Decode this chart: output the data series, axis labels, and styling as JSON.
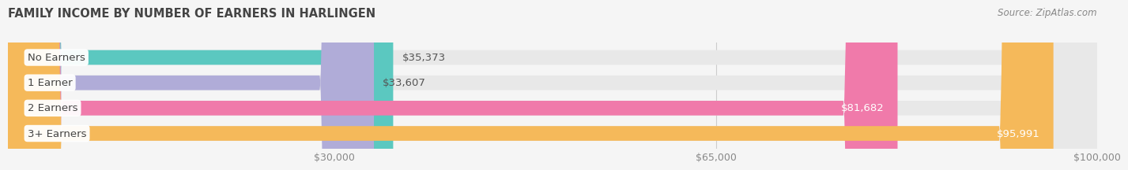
{
  "title": "FAMILY INCOME BY NUMBER OF EARNERS IN HARLINGEN",
  "source": "Source: ZipAtlas.com",
  "categories": [
    "No Earners",
    "1 Earner",
    "2 Earners",
    "3+ Earners"
  ],
  "values": [
    35373,
    33607,
    81682,
    95991
  ],
  "bar_colors": [
    "#5bc8c0",
    "#b0acd8",
    "#f07aaa",
    "#f5b95a"
  ],
  "bar_labels": [
    "$35,373",
    "$33,607",
    "$81,682",
    "$95,991"
  ],
  "label_colors": [
    "#555555",
    "#555555",
    "#ffffff",
    "#ffffff"
  ],
  "xmin": 0,
  "xmax": 100000,
  "xticks": [
    30000,
    65000,
    100000
  ],
  "xtick_labels": [
    "$30,000",
    "$65,000",
    "$100,000"
  ],
  "background_color": "#f5f5f5",
  "bar_background_color": "#e8e8e8",
  "bar_height": 0.58,
  "title_fontsize": 10.5,
  "label_fontsize": 9.5,
  "tick_fontsize": 9
}
